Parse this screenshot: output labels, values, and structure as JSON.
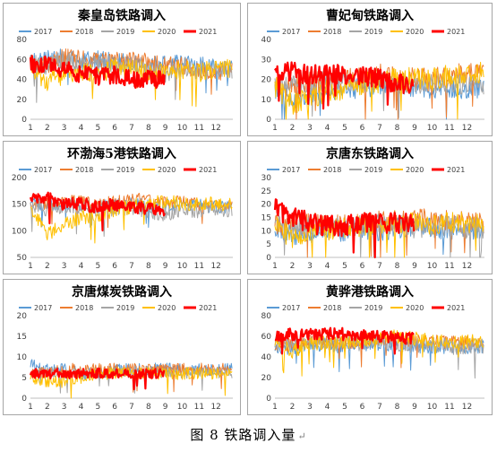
{
  "caption": "图 8  铁路调入量",
  "caption_mark": "↵",
  "legend_colors": {
    "2017": "#5b9bd5",
    "2018": "#ed7d31",
    "2019": "#a5a5a5",
    "2020": "#ffc000",
    "2021": "#ff0000"
  },
  "chart_data": [
    {
      "type": "line",
      "title": "秦皇岛铁路调入",
      "x_ticks": [
        "1",
        "2",
        "3",
        "4",
        "5",
        "6",
        "7",
        "8",
        "9",
        "10",
        "11",
        "12"
      ],
      "y_ticks": [
        "0",
        "20",
        "40",
        "60",
        "80"
      ],
      "ylim": [
        0,
        80
      ],
      "legend_position": "top",
      "series": [
        {
          "name": "2017",
          "months": [
            57,
            60,
            62,
            58,
            60,
            58,
            56,
            55,
            55,
            56,
            54,
            52
          ],
          "noise": 9
        },
        {
          "name": "2018",
          "months": [
            56,
            55,
            62,
            60,
            58,
            58,
            60,
            57,
            55,
            54,
            50,
            48
          ],
          "noise": 9
        },
        {
          "name": "2019",
          "months": [
            57,
            52,
            60,
            55,
            53,
            56,
            58,
            50,
            45,
            52,
            48,
            50
          ],
          "noise": 10
        },
        {
          "name": "2020",
          "months": [
            52,
            38,
            45,
            47,
            45,
            52,
            50,
            48,
            48,
            50,
            47,
            50
          ],
          "noise": 10
        },
        {
          "name": "2021",
          "months": [
            55,
            55,
            50,
            45,
            43,
            45,
            40,
            40
          ],
          "noise": 9
        }
      ]
    },
    {
      "type": "line",
      "title": "曹妃甸铁路调入",
      "x_ticks": [
        "1",
        "2",
        "3",
        "4",
        "5",
        "6",
        "7",
        "8",
        "9",
        "10",
        "11",
        "12"
      ],
      "y_ticks": [
        "0",
        "10",
        "20",
        "30",
        "40"
      ],
      "ylim": [
        0,
        40
      ],
      "legend_position": "top",
      "series": [
        {
          "name": "2017",
          "months": [
            15,
            10,
            12,
            15,
            14,
            16,
            15,
            17,
            16,
            15,
            16,
            15
          ],
          "noise": 5
        },
        {
          "name": "2018",
          "months": [
            14,
            16,
            18,
            18,
            20,
            20,
            22,
            21,
            20,
            20,
            22,
            22
          ],
          "noise": 6
        },
        {
          "name": "2019",
          "months": [
            18,
            17,
            18,
            20,
            19,
            18,
            20,
            18,
            17,
            18,
            18,
            17
          ],
          "noise": 5
        },
        {
          "name": "2020",
          "months": [
            16,
            8,
            10,
            14,
            16,
            18,
            18,
            20,
            20,
            20,
            22,
            23
          ],
          "noise": 6
        },
        {
          "name": "2021",
          "months": [
            22,
            24,
            22,
            23,
            22,
            22,
            20,
            18
          ],
          "noise": 5
        }
      ]
    },
    {
      "type": "line",
      "title": "环渤海5港铁路调入",
      "x_ticks": [
        "1",
        "2",
        "3",
        "4",
        "5",
        "6",
        "7",
        "8",
        "9",
        "10",
        "11",
        "12"
      ],
      "y_ticks": [
        "50",
        "100",
        "150",
        "200"
      ],
      "ylim": [
        50,
        200
      ],
      "legend_position": "top",
      "series": [
        {
          "name": "2017",
          "months": [
            150,
            148,
            150,
            148,
            145,
            148,
            150,
            150,
            148,
            150,
            148,
            145
          ],
          "noise": 12
        },
        {
          "name": "2018",
          "months": [
            150,
            152,
            155,
            155,
            152,
            155,
            160,
            158,
            155,
            155,
            150,
            150
          ],
          "noise": 12
        },
        {
          "name": "2019",
          "months": [
            150,
            140,
            148,
            145,
            140,
            140,
            145,
            135,
            130,
            140,
            138,
            140
          ],
          "noise": 14
        },
        {
          "name": "2020",
          "months": [
            140,
            95,
            110,
            125,
            130,
            140,
            145,
            155,
            155,
            150,
            150,
            150
          ],
          "noise": 14
        },
        {
          "name": "2021",
          "months": [
            160,
            162,
            150,
            150,
            145,
            150,
            145,
            140
          ],
          "noise": 12
        }
      ]
    },
    {
      "type": "line",
      "title": "京唐东铁路调入",
      "x_ticks": [
        "1",
        "2",
        "3",
        "4",
        "5",
        "6",
        "7",
        "8",
        "9",
        "10",
        "11",
        "12"
      ],
      "y_ticks": [
        "0",
        "5",
        "10",
        "15",
        "20",
        "25",
        "30"
      ],
      "ylim": [
        0,
        30
      ],
      "legend_position": "top",
      "series": [
        {
          "name": "2017",
          "months": [
            10,
            8,
            9,
            10,
            10,
            11,
            10,
            11,
            12,
            11,
            10,
            10
          ],
          "noise": 4
        },
        {
          "name": "2018",
          "months": [
            12,
            12,
            13,
            13,
            12,
            13,
            14,
            14,
            14,
            15,
            14,
            13
          ],
          "noise": 4
        },
        {
          "name": "2019",
          "months": [
            13,
            11,
            12,
            12,
            11,
            12,
            13,
            12,
            11,
            12,
            12,
            11
          ],
          "noise": 4
        },
        {
          "name": "2020",
          "months": [
            12,
            7,
            8,
            10,
            11,
            12,
            12,
            13,
            13,
            12,
            13,
            13
          ],
          "noise": 4
        },
        {
          "name": "2021",
          "months": [
            18,
            15,
            13,
            12,
            12,
            13,
            13,
            13
          ],
          "noise": 4
        }
      ]
    },
    {
      "type": "line",
      "title": "京唐煤炭铁路调入",
      "x_ticks": [
        "1",
        "2",
        "3",
        "4",
        "5",
        "6",
        "7",
        "8",
        "9",
        "10",
        "11",
        "12"
      ],
      "y_ticks": [
        "0",
        "5",
        "10",
        "15",
        "20"
      ],
      "ylim": [
        0,
        20
      ],
      "legend_position": "top",
      "series": [
        {
          "name": "2017",
          "months": [
            8,
            7,
            7,
            6,
            6,
            7,
            7,
            7,
            7,
            7,
            7,
            7
          ],
          "noise": 1.5
        },
        {
          "name": "2018",
          "months": [
            6,
            6,
            7,
            7,
            7,
            7,
            7,
            7,
            7,
            7,
            7,
            7
          ],
          "noise": 1.5
        },
        {
          "name": "2019",
          "months": [
            6,
            6,
            6,
            6,
            6,
            6,
            6,
            6,
            6,
            6,
            6,
            6
          ],
          "noise": 1.2
        },
        {
          "name": "2020",
          "months": [
            5,
            4,
            4,
            5,
            6,
            6,
            6,
            6,
            6,
            6,
            6,
            6
          ],
          "noise": 1.5
        },
        {
          "name": "2021",
          "months": [
            6,
            6,
            6,
            6,
            6,
            6,
            6,
            6
          ],
          "noise": 1.2
        }
      ]
    },
    {
      "type": "line",
      "title": "黄骅港铁路调入",
      "x_ticks": [
        "1",
        "2",
        "3",
        "4",
        "5",
        "6",
        "7",
        "8",
        "9",
        "10",
        "11",
        "12"
      ],
      "y_ticks": [
        "0",
        "20",
        "40",
        "60",
        "80"
      ],
      "ylim": [
        0,
        80
      ],
      "legend_position": "top",
      "series": [
        {
          "name": "2017",
          "months": [
            50,
            48,
            52,
            52,
            50,
            52,
            53,
            52,
            50,
            50,
            50,
            50
          ],
          "noise": 7
        },
        {
          "name": "2018",
          "months": [
            52,
            52,
            55,
            55,
            54,
            56,
            58,
            58,
            55,
            55,
            54,
            53
          ],
          "noise": 7
        },
        {
          "name": "2019",
          "months": [
            54,
            50,
            55,
            54,
            52,
            53,
            55,
            52,
            50,
            52,
            50,
            50
          ],
          "noise": 8
        },
        {
          "name": "2020",
          "months": [
            55,
            45,
            52,
            54,
            55,
            56,
            58,
            60,
            58,
            56,
            55,
            55
          ],
          "noise": 7
        },
        {
          "name": "2021",
          "months": [
            60,
            62,
            62,
            63,
            62,
            62,
            60,
            58
          ],
          "noise": 6
        }
      ]
    }
  ]
}
